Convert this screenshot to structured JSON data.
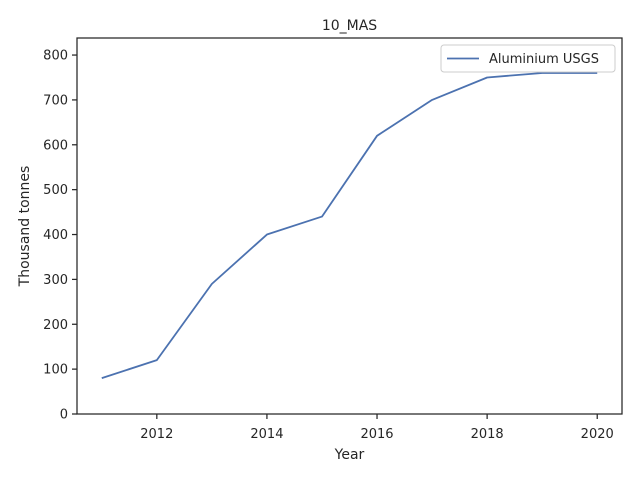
{
  "chart_data": {
    "type": "line",
    "title": "10_MAS",
    "xlabel": "Year",
    "ylabel": "Thousand tonnes",
    "x": [
      2011,
      2012,
      2013,
      2014,
      2015,
      2016,
      2017,
      2018,
      2019,
      2020
    ],
    "series": [
      {
        "name": "Aluminium USGS",
        "values": [
          80,
          120,
          290,
          400,
          440,
          620,
          700,
          750,
          760,
          760
        ],
        "color": "#4c72b0"
      }
    ],
    "xlim": [
      2010.55,
      2020.45
    ],
    "ylim": [
      0,
      838
    ],
    "xticks": [
      2012,
      2014,
      2016,
      2018,
      2020
    ],
    "yticks": [
      0,
      100,
      200,
      300,
      400,
      500,
      600,
      700,
      800
    ],
    "grid": false,
    "legend_position": "top-right"
  }
}
